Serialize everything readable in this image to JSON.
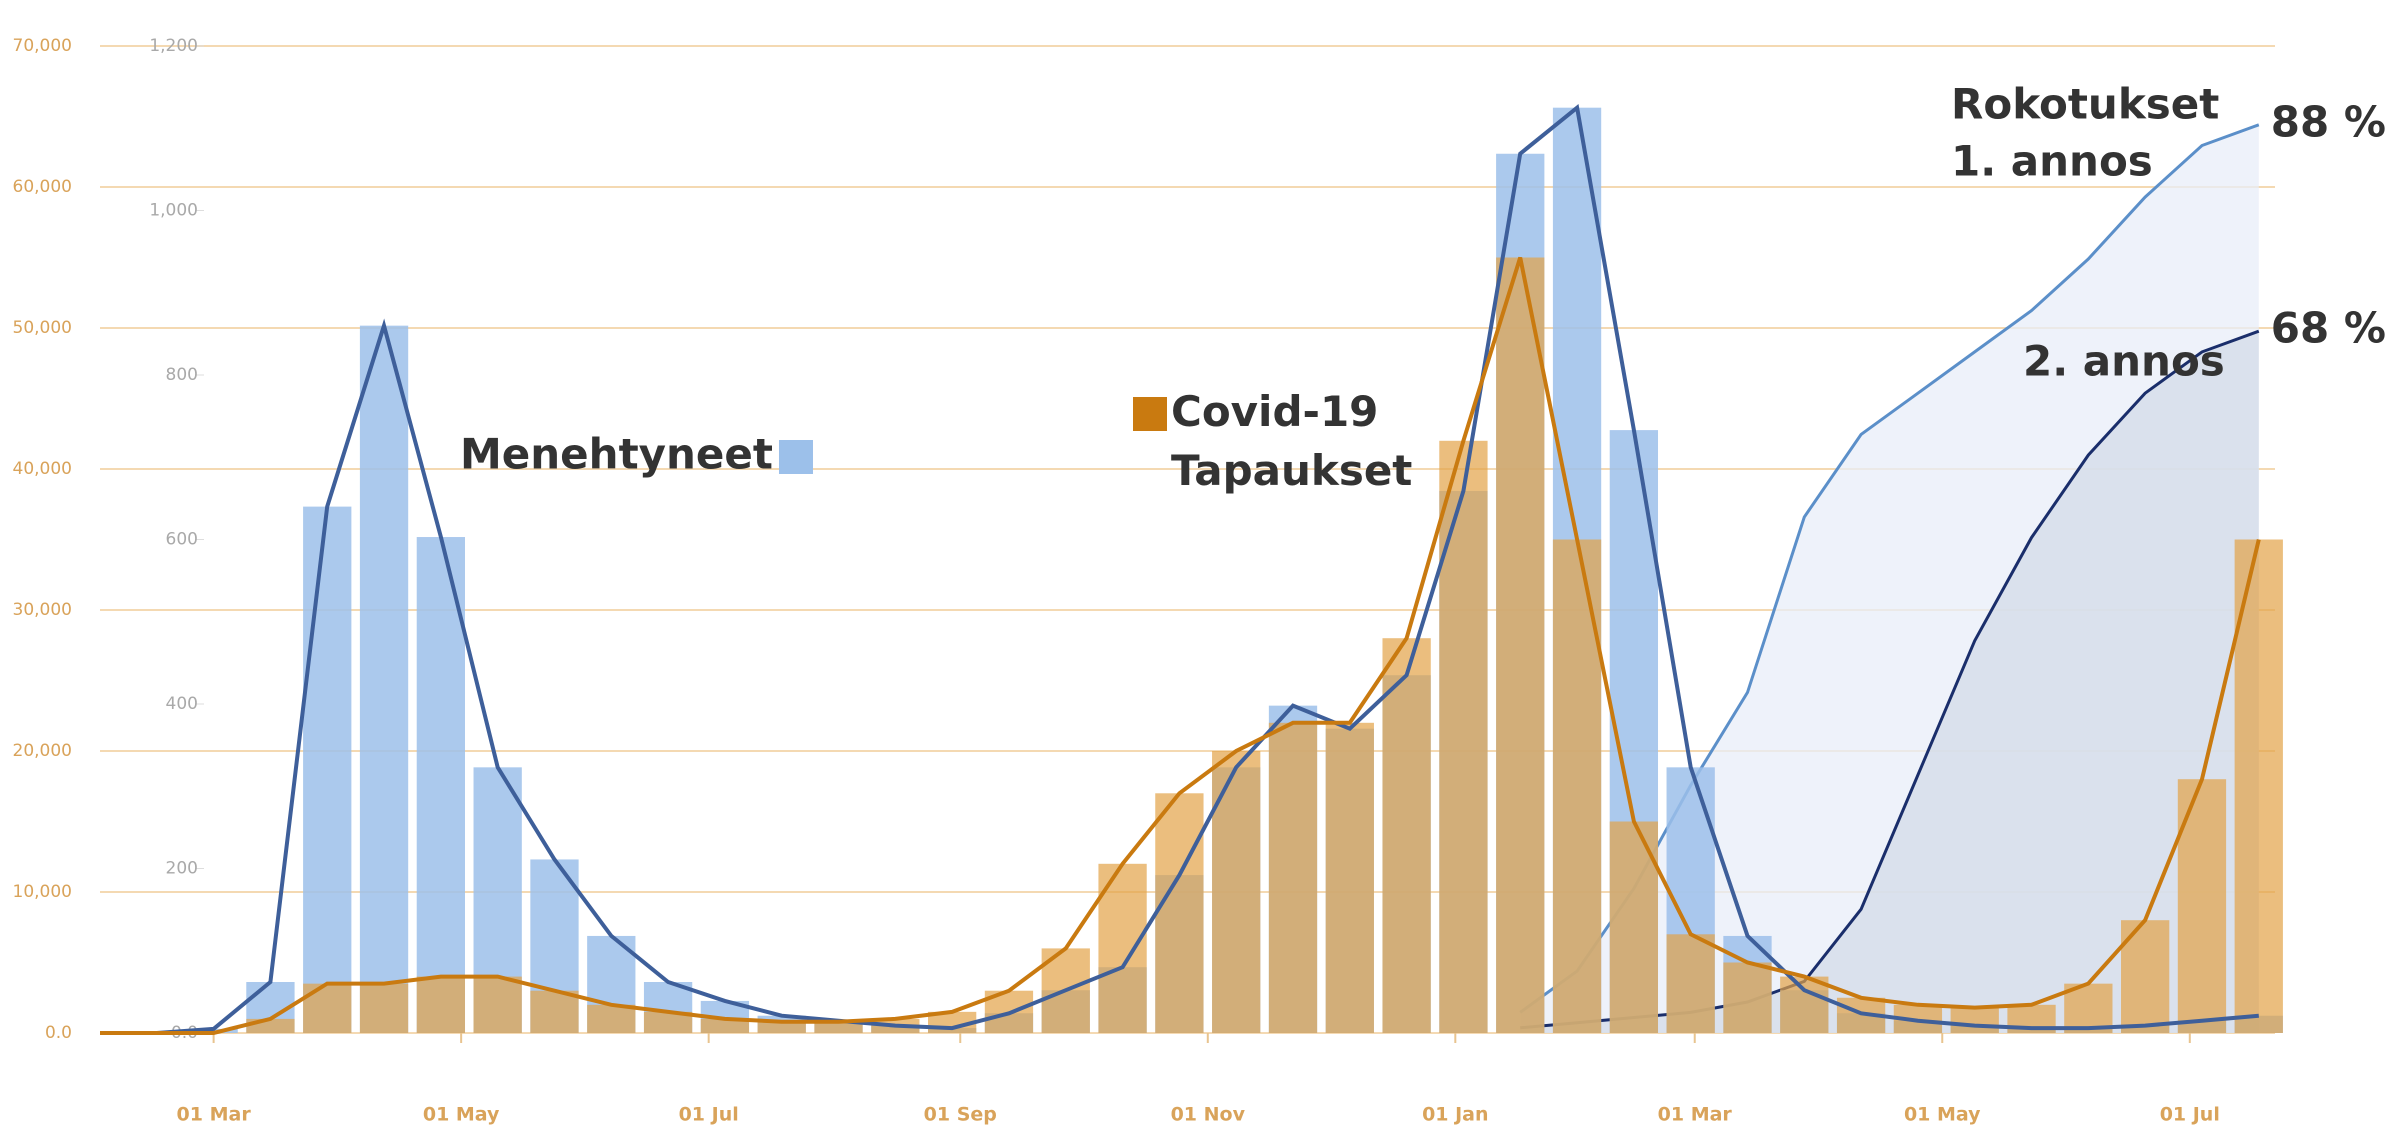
{
  "chart_data": {
    "type": "bar",
    "x": [
      -28,
      -14,
      0,
      14,
      28,
      42,
      56,
      70,
      84,
      98,
      112,
      126,
      140,
      154,
      168,
      182,
      196,
      210,
      224,
      238,
      252,
      266,
      280,
      294,
      308,
      322,
      336,
      350,
      364,
      378,
      392,
      406,
      420,
      434,
      448,
      462,
      476,
      490,
      504
    ],
    "xlim": [
      -28,
      508
    ],
    "xticks": [
      {
        "value": 0,
        "label": "01 Mar"
      },
      {
        "value": 61,
        "label": "01 May"
      },
      {
        "value": 122,
        "label": "01 Jul"
      },
      {
        "value": 184,
        "label": "01 Sep"
      },
      {
        "value": 245,
        "label": "01 Nov"
      },
      {
        "value": 306,
        "label": "01 Jan"
      },
      {
        "value": 365,
        "label": "01 Mar"
      },
      {
        "value": 426,
        "label": "01 May"
      },
      {
        "value": 487,
        "label": "01 Jul"
      }
    ],
    "ylim": [
      0,
      70000
    ],
    "yticks": [
      {
        "value": 0,
        "label": "0.0"
      },
      {
        "value": 10000,
        "label": "10,000"
      },
      {
        "value": 20000,
        "label": "20,000"
      },
      {
        "value": 30000,
        "label": "30,000"
      },
      {
        "value": 40000,
        "label": "40,000"
      },
      {
        "value": 50000,
        "label": "50,000"
      },
      {
        "value": 60000,
        "label": "60,000"
      },
      {
        "value": 70000,
        "label": "70,000"
      }
    ],
    "y2lim": [
      0,
      1200
    ],
    "y2ticks": [
      {
        "value": 0,
        "label": "0.0"
      },
      200,
      400,
      600,
      800,
      {
        "value": 1000,
        "label": "1,000"
      },
      {
        "value": 1200,
        "label": "1,200"
      }
    ],
    "y3lim": [
      0,
      100
    ],
    "grid": true,
    "annotation": "Rokotukset",
    "series": [
      {
        "name": "Menehtyneet",
        "axis": "y2",
        "color": "#9cc0ea",
        "line_color": "#3e5f9a",
        "values": [
          0,
          0,
          5,
          62,
          640,
          860,
          603,
          323,
          211,
          118,
          62,
          39,
          21,
          15,
          9,
          6,
          24,
          52,
          80,
          192,
          323,
          398,
          370,
          435,
          659,
          1069,
          1125,
          733,
          323,
          118,
          52,
          24,
          15,
          9,
          6,
          6,
          9,
          15,
          21
        ]
      },
      {
        "name": "Covid-19 Tapaukset",
        "axis": "y",
        "color": "#e3a247",
        "line_color": "#c97a10",
        "values": [
          0,
          0,
          0,
          1000,
          3500,
          3500,
          4000,
          4000,
          3000,
          2000,
          1500,
          1000,
          800,
          800,
          1000,
          1500,
          3000,
          6000,
          12000,
          17000,
          20000,
          22000,
          22000,
          28000,
          42000,
          55000,
          35000,
          15000,
          7000,
          5000,
          4000,
          2500,
          2000,
          1800,
          2000,
          3500,
          8000,
          18000,
          35000
        ]
      },
      {
        "name": "1. annos",
        "type": "line",
        "axis": "y3",
        "color": "#5b8fc9",
        "fill": "#e8eef8",
        "values": [
          null,
          null,
          null,
          null,
          null,
          null,
          null,
          null,
          null,
          null,
          null,
          null,
          null,
          null,
          null,
          null,
          null,
          null,
          null,
          null,
          null,
          null,
          null,
          null,
          null,
          2,
          6,
          14,
          24,
          33,
          50,
          58,
          62,
          66,
          70,
          75,
          81,
          86,
          88
        ],
        "value_labels": [
          null,
          null,
          null,
          null,
          null,
          null,
          null,
          null,
          null,
          null,
          null,
          null,
          null,
          null,
          null,
          null,
          null,
          null,
          null,
          null,
          null,
          null,
          null,
          null,
          null,
          null,
          null,
          null,
          null,
          null,
          null,
          null,
          null,
          null,
          null,
          null,
          null,
          null,
          "88 %"
        ]
      },
      {
        "name": "2. annos",
        "type": "line",
        "axis": "y3",
        "color": "#1a2e6b",
        "fill": "#d3dbe8",
        "values": [
          null,
          null,
          null,
          null,
          null,
          null,
          null,
          null,
          null,
          null,
          null,
          null,
          null,
          null,
          null,
          null,
          null,
          null,
          null,
          null,
          null,
          null,
          null,
          null,
          null,
          0.5,
          1,
          1.5,
          2,
          3,
          5,
          12,
          25,
          38,
          48,
          56,
          62,
          66,
          68
        ],
        "value_labels": [
          null,
          null,
          null,
          null,
          null,
          null,
          null,
          null,
          null,
          null,
          null,
          null,
          null,
          null,
          null,
          null,
          null,
          null,
          null,
          null,
          null,
          null,
          null,
          null,
          null,
          null,
          null,
          null,
          null,
          null,
          null,
          null,
          null,
          null,
          null,
          null,
          null,
          null,
          "68 %"
        ]
      }
    ]
  }
}
